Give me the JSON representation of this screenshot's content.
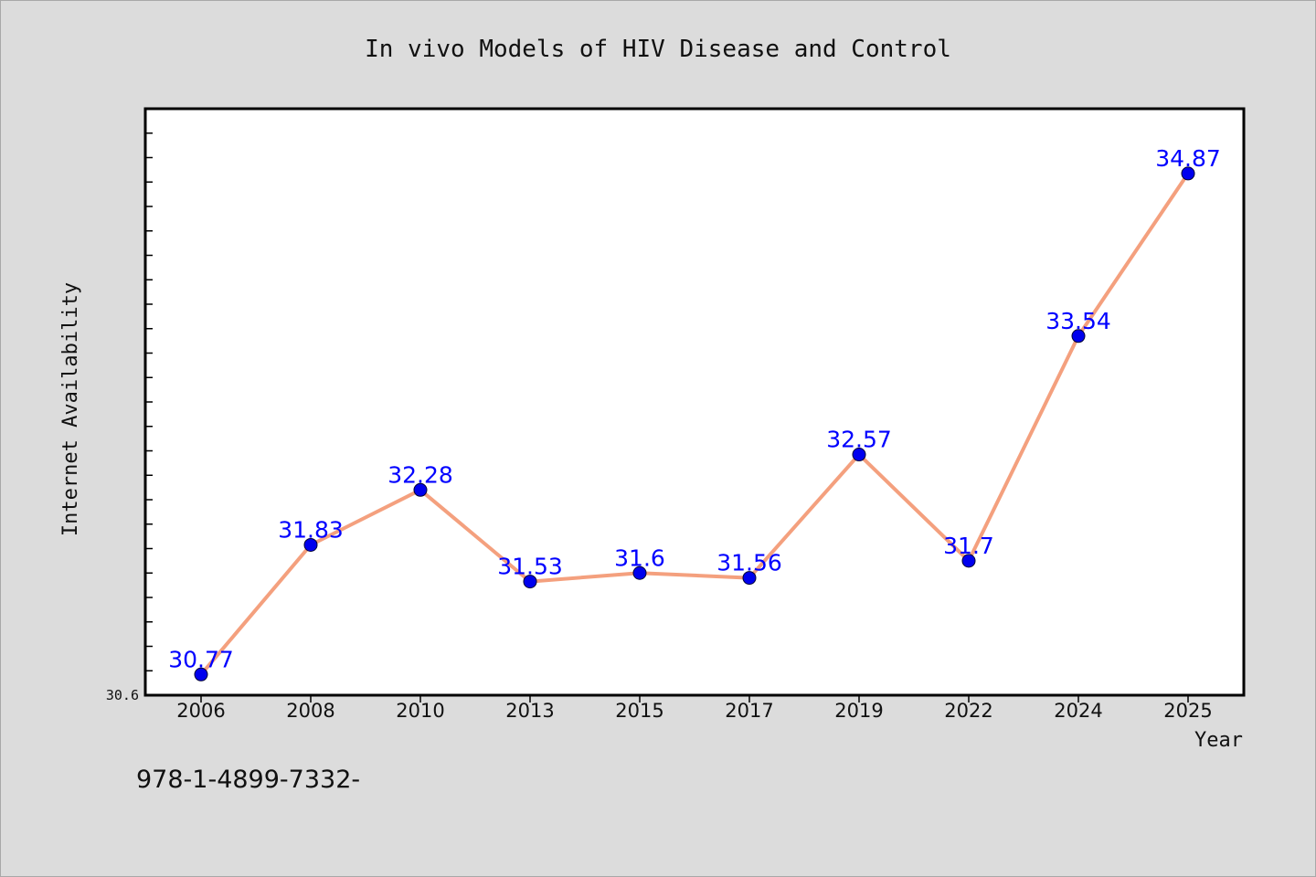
{
  "chart_data": {
    "type": "line",
    "title": "In vivo Models of HIV Disease and Control",
    "xlabel": "Year",
    "ylabel": "Internet Availability",
    "categories": [
      "2006",
      "2008",
      "2010",
      "2013",
      "2015",
      "2017",
      "2019",
      "2022",
      "2024",
      "2025"
    ],
    "values": [
      30.77,
      31.83,
      32.28,
      31.53,
      31.6,
      31.56,
      32.57,
      31.7,
      33.54,
      34.87
    ],
    "data_labels": [
      "30.77",
      "31.83",
      "32.28",
      "31.53",
      "31.6",
      "31.56",
      "32.57",
      "31.7",
      "33.54",
      "34.87"
    ],
    "y_tick_label": "30.6",
    "ylim": [
      30.6,
      35.4
    ],
    "grid": false,
    "line_color": "#f4a07e",
    "marker_color": "#0000ee",
    "label_color": "#0000ff"
  },
  "footer": {
    "text": "978-1-4899-7332-"
  }
}
